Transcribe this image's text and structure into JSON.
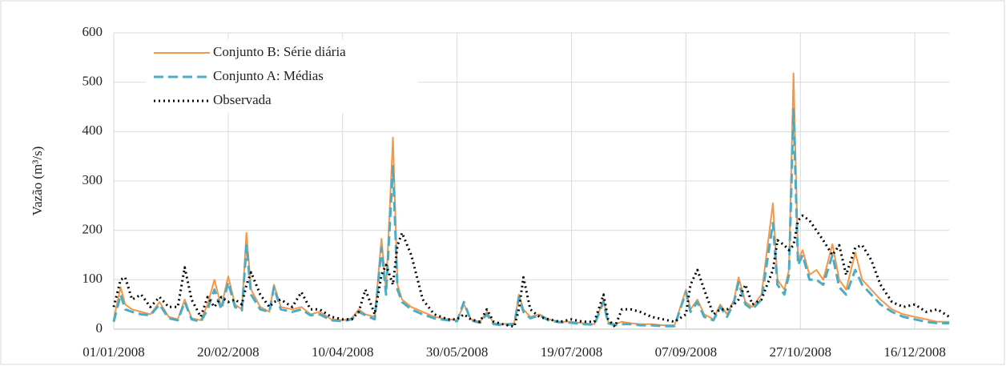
{
  "chart_data": {
    "type": "line",
    "y_label": "Vazão (m³/s)",
    "x": [
      "01/01/2008",
      "04/01/2008",
      "06/01/2008",
      "09/01/2008",
      "13/01/2008",
      "17/01/2008",
      "21/01/2008",
      "25/01/2008",
      "29/01/2008",
      "01/02/2008",
      "04/02/2008",
      "08/02/2008",
      "11/02/2008",
      "14/02/2008",
      "17/02/2008",
      "20/02/2008",
      "23/02/2008",
      "26/02/2008",
      "28/02/2008",
      "01/03/2008",
      "05/03/2008",
      "09/03/2008",
      "11/03/2008",
      "14/03/2008",
      "19/03/2008",
      "23/03/2008",
      "27/03/2008",
      "31/03/2008",
      "05/04/2008",
      "10/04/2008",
      "14/04/2008",
      "17/04/2008",
      "20/04/2008",
      "24/04/2008",
      "27/04/2008",
      "29/04/2008",
      "02/05/2008",
      "04/05/2008",
      "06/05/2008",
      "10/05/2008",
      "15/05/2008",
      "20/05/2008",
      "26/05/2008",
      "30/05/2008",
      "02/06/2008",
      "05/06/2008",
      "09/06/2008",
      "12/06/2008",
      "15/06/2008",
      "19/06/2008",
      "24/06/2008",
      "26/06/2008",
      "28/06/2008",
      "01/07/2008",
      "05/07/2008",
      "09/07/2008",
      "14/07/2008",
      "19/07/2008",
      "24/07/2008",
      "29/07/2008",
      "02/08/2008",
      "04/08/2008",
      "07/08/2008",
      "10/08/2008",
      "14/08/2008",
      "18/08/2008",
      "23/08/2008",
      "28/08/2008",
      "02/09/2008",
      "07/09/2008",
      "09/09/2008",
      "12/09/2008",
      "15/09/2008",
      "19/09/2008",
      "22/09/2008",
      "25/09/2008",
      "28/09/2008",
      "30/09/2008",
      "03/10/2008",
      "06/10/2008",
      "10/10/2008",
      "15/10/2008",
      "17/10/2008",
      "20/10/2008",
      "22/10/2008",
      "24/10/2008",
      "26/10/2008",
      "28/10/2008",
      "31/10/2008",
      "03/11/2008",
      "06/11/2008",
      "10/11/2008",
      "13/11/2008",
      "16/11/2008",
      "20/11/2008",
      "23/11/2008",
      "27/11/2008",
      "01/12/2008",
      "06/12/2008",
      "11/12/2008",
      "16/12/2008",
      "21/12/2008",
      "26/12/2008",
      "31/12/2008"
    ],
    "series": [
      {
        "name": "Conjunto B: Série diária",
        "color": "#f79646",
        "dash": "solid",
        "values": [
          20,
          85,
          50,
          40,
          35,
          30,
          55,
          25,
          20,
          60,
          22,
          18,
          50,
          100,
          45,
          107,
          50,
          40,
          195,
          80,
          45,
          35,
          90,
          45,
          40,
          45,
          30,
          35,
          20,
          18,
          22,
          40,
          30,
          25,
          183,
          80,
          388,
          90,
          60,
          45,
          35,
          25,
          20,
          18,
          50,
          20,
          15,
          35,
          12,
          10,
          12,
          70,
          40,
          25,
          30,
          20,
          15,
          15,
          12,
          10,
          60,
          15,
          10,
          15,
          12,
          10,
          10,
          8,
          8,
          80,
          40,
          60,
          30,
          20,
          50,
          30,
          60,
          105,
          55,
          45,
          70,
          255,
          100,
          80,
          120,
          518,
          140,
          160,
          110,
          120,
          100,
          172,
          100,
          80,
          155,
          100,
          80,
          60,
          40,
          30,
          25,
          20,
          15,
          15
        ]
      },
      {
        "name": "Conjunto A: Médias",
        "color": "#4bacc6",
        "dash": "dashed",
        "values": [
          15,
          70,
          40,
          35,
          30,
          28,
          50,
          22,
          18,
          55,
          20,
          15,
          40,
          80,
          40,
          95,
          45,
          38,
          170,
          70,
          40,
          35,
          85,
          40,
          35,
          40,
          28,
          30,
          18,
          16,
          20,
          35,
          28,
          20,
          165,
          70,
          330,
          80,
          55,
          40,
          30,
          22,
          18,
          16,
          55,
          18,
          13,
          30,
          10,
          8,
          10,
          65,
          35,
          22,
          28,
          18,
          14,
          13,
          10,
          9,
          55,
          12,
          8,
          10,
          10,
          8,
          8,
          6,
          6,
          75,
          35,
          55,
          25,
          18,
          45,
          25,
          55,
          95,
          50,
          40,
          60,
          215,
          90,
          70,
          110,
          445,
          130,
          150,
          100,
          100,
          90,
          150,
          85,
          70,
          120,
          90,
          70,
          50,
          35,
          25,
          20,
          15,
          12,
          12
        ]
      },
      {
        "name": "Observada",
        "color": "#000000",
        "dash": "dotted",
        "values": [
          45,
          100,
          105,
          60,
          70,
          45,
          65,
          45,
          45,
          125,
          60,
          25,
          65,
          45,
          65,
          55,
          60,
          50,
          90,
          115,
          70,
          45,
          55,
          60,
          45,
          75,
          40,
          40,
          25,
          20,
          20,
          35,
          80,
          30,
          110,
          130,
          90,
          170,
          195,
          150,
          60,
          30,
          20,
          20,
          30,
          20,
          15,
          40,
          15,
          10,
          5,
          40,
          105,
          40,
          25,
          20,
          15,
          20,
          15,
          15,
          70,
          20,
          5,
          40,
          40,
          35,
          25,
          20,
          15,
          30,
          90,
          120,
          80,
          30,
          40,
          40,
          50,
          60,
          90,
          50,
          60,
          120,
          180,
          170,
          160,
          170,
          220,
          230,
          220,
          200,
          180,
          150,
          170,
          110,
          165,
          170,
          140,
          90,
          55,
          45,
          50,
          35,
          40,
          25
        ]
      }
    ],
    "xlim": [
      "01/01/2008",
      "31/12/2008"
    ],
    "xticks": [
      "01/01/2008",
      "20/02/2008",
      "10/04/2008",
      "30/05/2008",
      "19/07/2008",
      "07/09/2008",
      "27/10/2008",
      "16/12/2008"
    ],
    "ylim": [
      0,
      600
    ],
    "yticks": [
      0,
      100,
      200,
      300,
      400,
      500,
      600
    ],
    "grid": true,
    "legend": "top-left"
  }
}
